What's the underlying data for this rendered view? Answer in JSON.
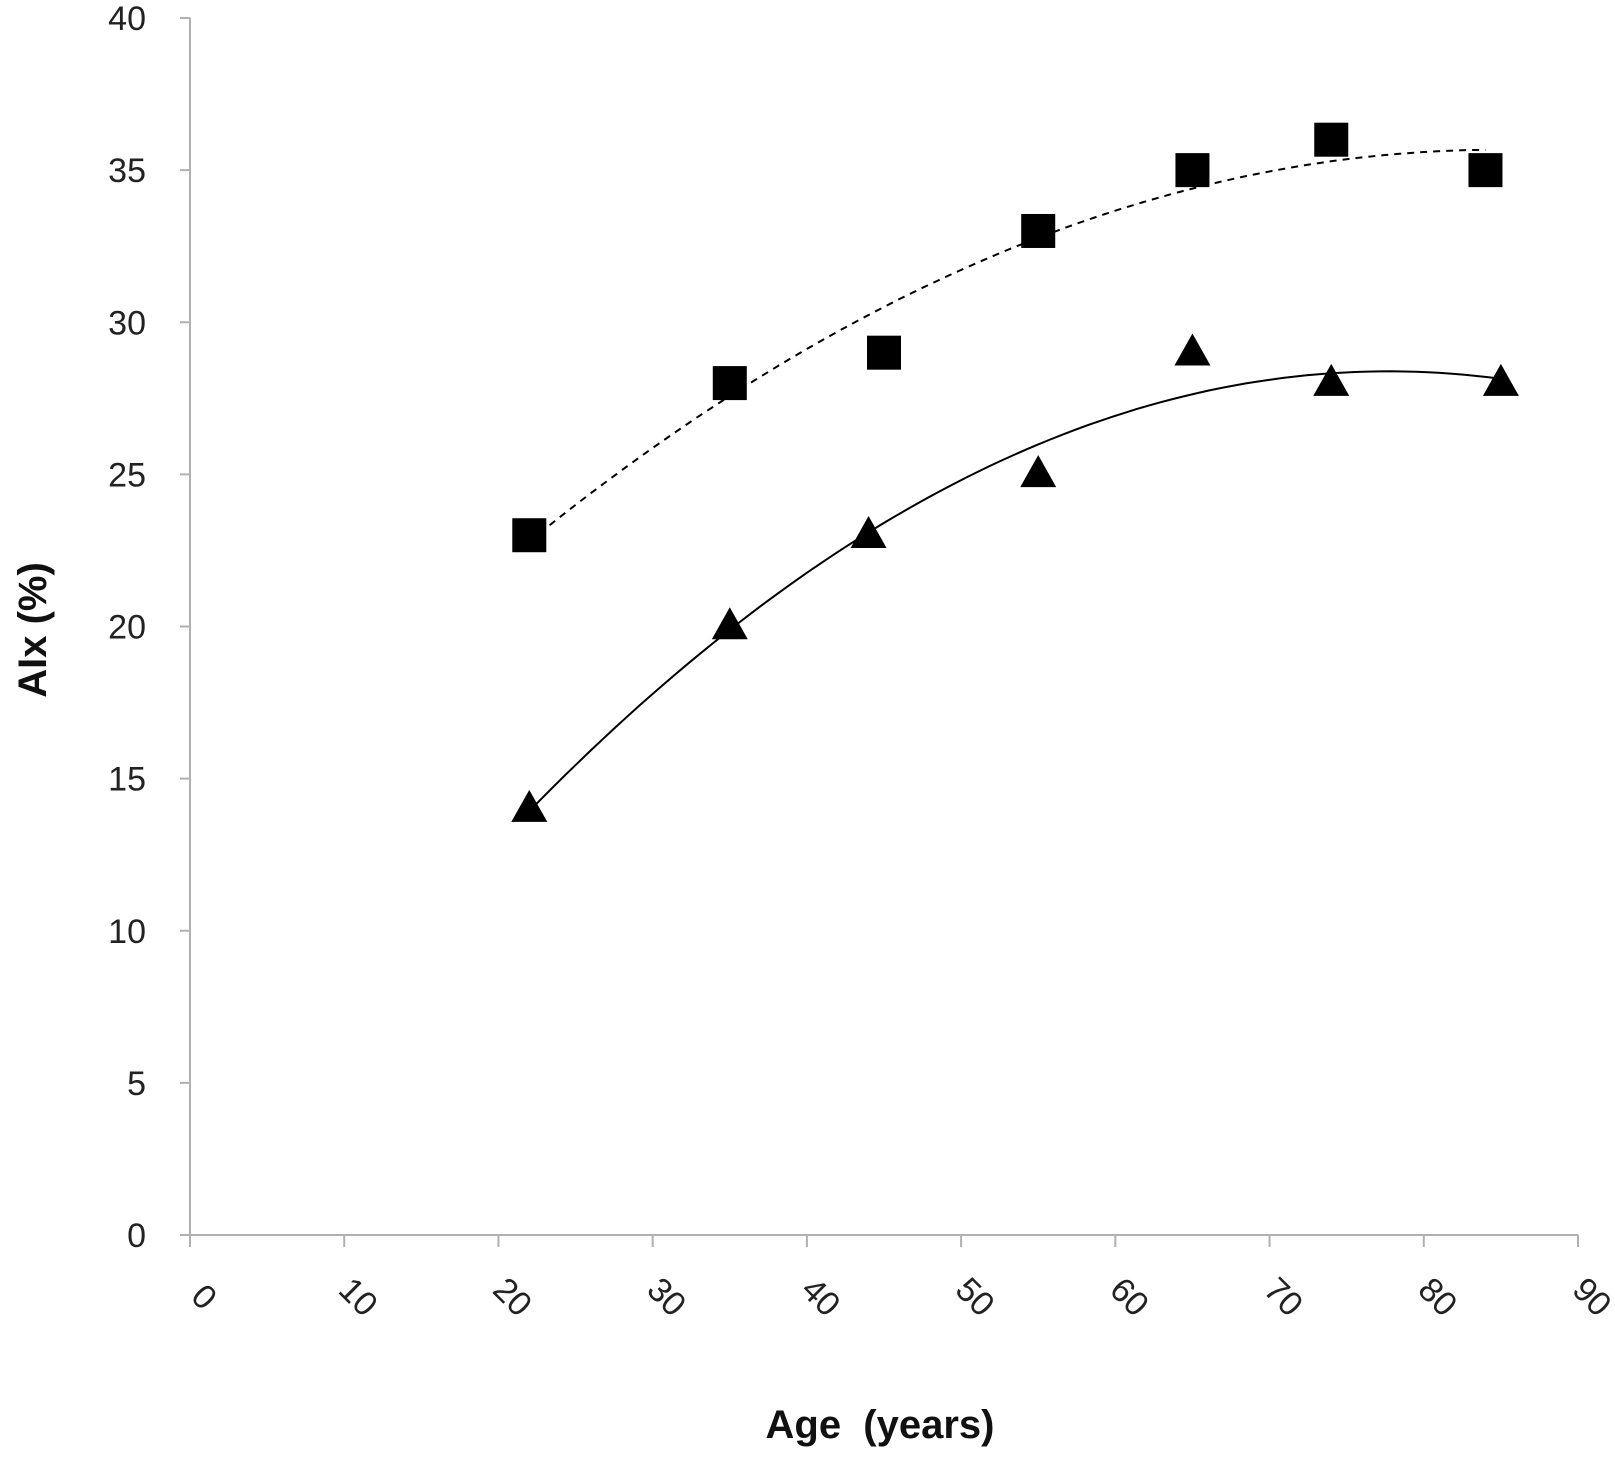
{
  "chart_data": {
    "type": "scatter",
    "title": "",
    "xlabel": "Age  (years)",
    "ylabel": "AIx (%)",
    "xlim": [
      0,
      90
    ],
    "ylim": [
      0,
      40
    ],
    "x_ticks": [
      0,
      10,
      20,
      30,
      40,
      50,
      60,
      70,
      80,
      90
    ],
    "y_ticks": [
      0,
      5,
      10,
      15,
      20,
      25,
      30,
      35,
      40
    ],
    "grid": false,
    "legend": "none",
    "series": [
      {
        "marker": "square",
        "trendline": "dashed",
        "x": [
          22,
          35,
          45,
          55,
          65,
          74,
          84
        ],
        "y": [
          23,
          28,
          29,
          33,
          35,
          36,
          35
        ]
      },
      {
        "marker": "triangle",
        "trendline": "solid",
        "x": [
          22,
          35,
          44,
          55,
          65,
          74,
          85
        ],
        "y": [
          14,
          20,
          23,
          25,
          29,
          28,
          28
        ]
      }
    ],
    "colors": {
      "axis": "#b0b0b0",
      "marker": "#000000",
      "text": "#222222"
    }
  }
}
